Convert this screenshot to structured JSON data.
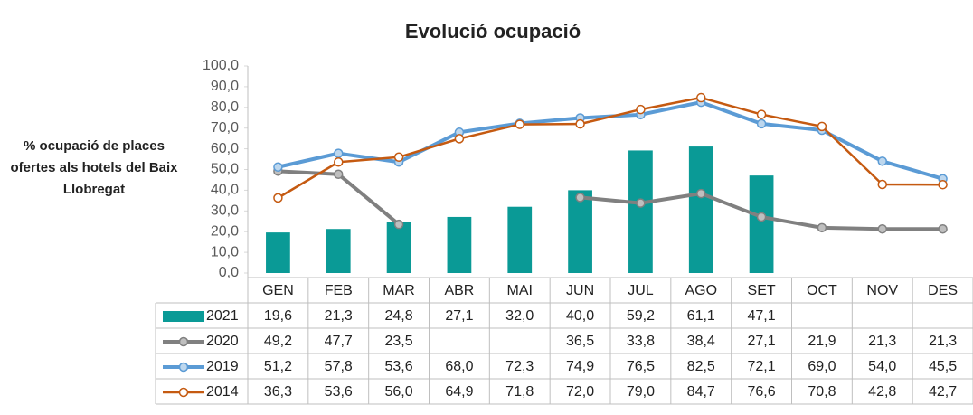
{
  "chart_data": {
    "type": "combo",
    "title": "Evolució ocupació",
    "y_label": "% ocupació de places ofertes als hotels del Baix Llobregat",
    "categories": [
      "GEN",
      "FEB",
      "MAR",
      "ABR",
      "MAI",
      "JUN",
      "JUL",
      "AGO",
      "SET",
      "OCT",
      "NOV",
      "DES"
    ],
    "ylim": [
      0,
      100
    ],
    "yticks": [
      {
        "value": 0,
        "label": "0,0"
      },
      {
        "value": 10,
        "label": "10,0"
      },
      {
        "value": 20,
        "label": "20,0"
      },
      {
        "value": 30,
        "label": "30,0"
      },
      {
        "value": 40,
        "label": "40,0"
      },
      {
        "value": 50,
        "label": "50,0"
      },
      {
        "value": 60,
        "label": "60,0"
      },
      {
        "value": 70,
        "label": "70,0"
      },
      {
        "value": 80,
        "label": "80,0"
      },
      {
        "value": 90,
        "label": "90,0"
      },
      {
        "value": 100,
        "label": "100,0"
      }
    ],
    "series": [
      {
        "name": "2021",
        "type": "bar",
        "color": "#0a9a96",
        "values": [
          19.6,
          21.3,
          24.8,
          27.1,
          32.0,
          40.0,
          59.2,
          61.1,
          47.1,
          null,
          null,
          null
        ],
        "value_labels": [
          "19,6",
          "21,3",
          "24,8",
          "27,1",
          "32,0",
          "40,0",
          "59,2",
          "61,1",
          "47,1",
          null,
          null,
          null
        ]
      },
      {
        "name": "2020",
        "type": "line",
        "color": "#808080",
        "values": [
          49.2,
          47.7,
          23.5,
          null,
          null,
          36.5,
          33.8,
          38.4,
          27.1,
          21.9,
          21.3,
          21.3
        ],
        "value_labels": [
          "49,2",
          "47,7",
          "23,5",
          null,
          null,
          "36,5",
          "33,8",
          "38,4",
          "27,1",
          "21,9",
          "21,3",
          "21,3"
        ]
      },
      {
        "name": "2019",
        "type": "line",
        "color": "#5b9bd5",
        "values": [
          51.2,
          57.8,
          53.6,
          68.0,
          72.3,
          74.9,
          76.5,
          82.5,
          72.1,
          69.0,
          54.0,
          45.5
        ],
        "value_labels": [
          "51,2",
          "57,8",
          "53,6",
          "68,0",
          "72,3",
          "74,9",
          "76,5",
          "82,5",
          "72,1",
          "69,0",
          "54,0",
          "45,5"
        ]
      },
      {
        "name": "2014",
        "type": "line",
        "color": "#c55a11",
        "values": [
          36.3,
          53.6,
          56.0,
          64.9,
          71.8,
          72.0,
          79.0,
          84.7,
          76.6,
          70.8,
          42.8,
          42.7
        ],
        "value_labels": [
          "36,3",
          "53,6",
          "56,0",
          "64,9",
          "71,8",
          "72,0",
          "79,0",
          "84,7",
          "76,6",
          "70,8",
          "42,8",
          "42,7"
        ]
      }
    ]
  }
}
